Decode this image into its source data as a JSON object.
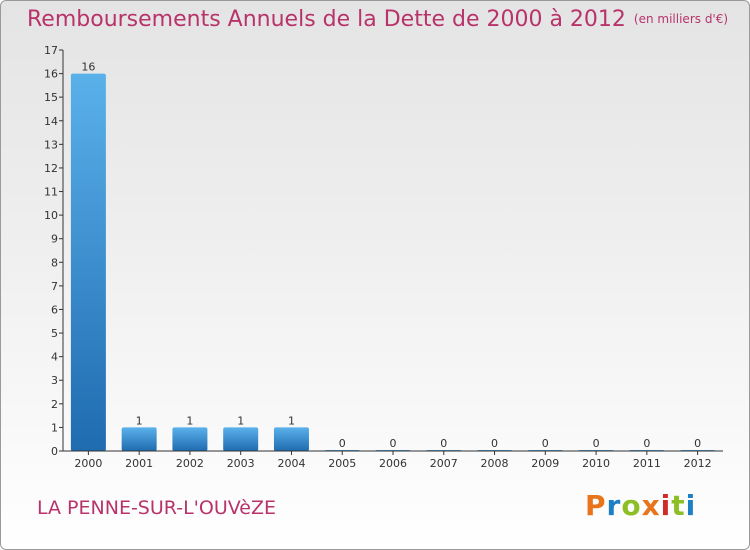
{
  "header": {
    "title": "Remboursements Annuels de la Dette de 2000 à 2012",
    "subtitle": "(en milliers d'€)"
  },
  "footer": {
    "place": "LA PENNE-SUR-L'OUVèZE",
    "brand": {
      "text": "Proxiti",
      "colors": [
        "#e8741c",
        "#1e7fc4",
        "#8cbf26",
        "#e8741c",
        "#d02b2b",
        "#8cbf26",
        "#1e7fc4"
      ]
    }
  },
  "colors": {
    "bar_top": "#5ab1ea",
    "bar_bottom": "#1f6bb0",
    "axis": "#333333",
    "tick_text": "#333333",
    "title": "#b8336a"
  },
  "chart_data": {
    "type": "bar",
    "title": "Remboursements Annuels de la Dette de 2000 à 2012",
    "subtitle": "(en milliers d'€)",
    "categories": [
      "2000",
      "2001",
      "2002",
      "2003",
      "2004",
      "2005",
      "2006",
      "2007",
      "2008",
      "2009",
      "2010",
      "2011",
      "2012"
    ],
    "values": [
      16,
      1,
      1,
      1,
      1,
      0,
      0,
      0,
      0,
      0,
      0,
      0,
      0
    ],
    "value_labels": [
      "16",
      "1",
      "1",
      "1",
      "1",
      "0",
      "0",
      "0",
      "0",
      "0",
      "0",
      "0",
      "0"
    ],
    "xlabel": "",
    "ylabel": "",
    "ylim": [
      0,
      17
    ],
    "yticks": [
      0,
      1,
      2,
      3,
      4,
      5,
      6,
      7,
      8,
      9,
      10,
      11,
      12,
      13,
      14,
      15,
      16,
      17
    ],
    "ytick_labels": [
      "0",
      "1",
      "2",
      "3",
      "4",
      "5",
      "6",
      "7",
      "8",
      "9",
      "10",
      "11",
      "12",
      "13",
      "14",
      "15",
      "16",
      "17"
    ],
    "grid": false,
    "legend": "none"
  }
}
